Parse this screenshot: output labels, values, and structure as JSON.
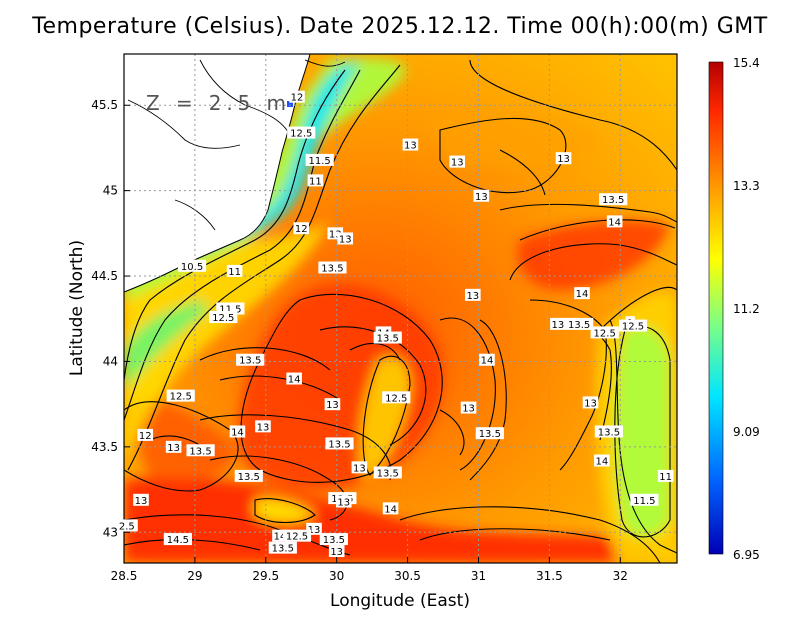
{
  "title": "Temperature (Celsius). Date 2025.12.12. Time 00(h):00(m) GMT",
  "depth_label": "Z = 2.5 m",
  "map": {
    "xlabel": "Longitude (East)",
    "ylabel": "Latitude (North)",
    "xlim": [
      28.5,
      32.4
    ],
    "ylim": [
      42.82,
      45.8
    ],
    "x_ticks": [
      {
        "v": 28.5,
        "t": "28.5"
      },
      {
        "v": 29,
        "t": "29"
      },
      {
        "v": 29.5,
        "t": "29.5"
      },
      {
        "v": 30,
        "t": "30"
      },
      {
        "v": 30.5,
        "t": "30.5"
      },
      {
        "v": 31,
        "t": "31"
      },
      {
        "v": 31.5,
        "t": "31.5"
      },
      {
        "v": 32,
        "t": "32"
      }
    ],
    "y_ticks": [
      {
        "v": 43,
        "t": "43"
      },
      {
        "v": 43.5,
        "t": "43.5"
      },
      {
        "v": 44,
        "t": "44"
      },
      {
        "v": 44.5,
        "t": "44.5"
      },
      {
        "v": 45,
        "t": "45"
      },
      {
        "v": 45.5,
        "t": "45.5"
      }
    ],
    "grid": "dotted",
    "contour_interval": 0.5
  },
  "colorbar": {
    "min": 6.95,
    "max": 15.4,
    "labels": [
      "15.4",
      "13.3",
      "11.2",
      "9.09",
      "6.95"
    ],
    "colors": [
      "#0000b4",
      "#0064ff",
      "#00e6ff",
      "#80ff80",
      "#ffff00",
      "#ff9600",
      "#ff2800",
      "#b40000"
    ]
  },
  "contour_labels": [
    {
      "lon": 29.72,
      "lat": 45.55,
      "t": "12"
    },
    {
      "lon": 29.75,
      "lat": 45.34,
      "t": "12.5"
    },
    {
      "lon": 29.88,
      "lat": 45.18,
      "t": "11.5"
    },
    {
      "lon": 29.85,
      "lat": 45.06,
      "t": "11"
    },
    {
      "lon": 30.52,
      "lat": 45.27,
      "t": "13"
    },
    {
      "lon": 30.85,
      "lat": 45.17,
      "t": "13"
    },
    {
      "lon": 31.6,
      "lat": 45.19,
      "t": "13"
    },
    {
      "lon": 31.02,
      "lat": 44.97,
      "t": "13"
    },
    {
      "lon": 31.95,
      "lat": 44.95,
      "t": "13.5"
    },
    {
      "lon": 31.96,
      "lat": 44.82,
      "t": "14"
    },
    {
      "lon": 29.75,
      "lat": 44.78,
      "t": "12"
    },
    {
      "lon": 29.99,
      "lat": 44.75,
      "t": "13"
    },
    {
      "lon": 30.06,
      "lat": 44.72,
      "t": "13"
    },
    {
      "lon": 28.98,
      "lat": 44.56,
      "t": "10.5"
    },
    {
      "lon": 29.28,
      "lat": 44.53,
      "t": "11"
    },
    {
      "lon": 29.97,
      "lat": 44.55,
      "t": "13.5"
    },
    {
      "lon": 30.96,
      "lat": 44.39,
      "t": "13"
    },
    {
      "lon": 31.73,
      "lat": 44.4,
      "t": "14"
    },
    {
      "lon": 29.25,
      "lat": 44.31,
      "t": "11.5"
    },
    {
      "lon": 29.2,
      "lat": 44.26,
      "t": "12.5"
    },
    {
      "lon": 31.56,
      "lat": 44.22,
      "t": "13"
    },
    {
      "lon": 31.71,
      "lat": 44.22,
      "t": "13.5"
    },
    {
      "lon": 32.07,
      "lat": 44.23,
      "t": "1"
    },
    {
      "lon": 32.09,
      "lat": 44.21,
      "t": "12.5"
    },
    {
      "lon": 31.89,
      "lat": 44.17,
      "t": "12.5"
    },
    {
      "lon": 30.33,
      "lat": 44.17,
      "t": "14"
    },
    {
      "lon": 30.36,
      "lat": 44.14,
      "t": "13.5"
    },
    {
      "lon": 29.39,
      "lat": 44.01,
      "t": "13.5"
    },
    {
      "lon": 31.06,
      "lat": 44.01,
      "t": "14"
    },
    {
      "lon": 29.7,
      "lat": 43.9,
      "t": "14"
    },
    {
      "lon": 28.9,
      "lat": 43.8,
      "t": "12.5"
    },
    {
      "lon": 30.42,
      "lat": 43.79,
      "t": "12.5"
    },
    {
      "lon": 29.97,
      "lat": 43.75,
      "t": "13"
    },
    {
      "lon": 30.93,
      "lat": 43.73,
      "t": "13"
    },
    {
      "lon": 31.79,
      "lat": 43.76,
      "t": "13"
    },
    {
      "lon": 29.48,
      "lat": 43.62,
      "t": "13"
    },
    {
      "lon": 29.3,
      "lat": 43.59,
      "t": "14"
    },
    {
      "lon": 31.08,
      "lat": 43.58,
      "t": "13.5"
    },
    {
      "lon": 31.92,
      "lat": 43.59,
      "t": "13.5"
    },
    {
      "lon": 28.65,
      "lat": 43.57,
      "t": "12"
    },
    {
      "lon": 28.85,
      "lat": 43.5,
      "t": "13"
    },
    {
      "lon": 29.04,
      "lat": 43.48,
      "t": "13.5"
    },
    {
      "lon": 30.02,
      "lat": 43.52,
      "t": "13.5"
    },
    {
      "lon": 31.87,
      "lat": 43.42,
      "t": "14"
    },
    {
      "lon": 30.16,
      "lat": 43.38,
      "t": "13"
    },
    {
      "lon": 30.36,
      "lat": 43.35,
      "t": "13.5"
    },
    {
      "lon": 32.32,
      "lat": 43.33,
      "t": "11"
    },
    {
      "lon": 29.38,
      "lat": 43.33,
      "t": "13.5"
    },
    {
      "lon": 28.62,
      "lat": 43.19,
      "t": "13"
    },
    {
      "lon": 30.04,
      "lat": 43.2,
      "t": "12.5"
    },
    {
      "lon": 30.05,
      "lat": 43.18,
      "t": "13"
    },
    {
      "lon": 32.17,
      "lat": 43.19,
      "t": "11.5"
    },
    {
      "lon": 30.38,
      "lat": 43.14,
      "t": "14"
    },
    {
      "lon": 28.52,
      "lat": 43.04,
      "t": "2.5"
    },
    {
      "lon": 29.84,
      "lat": 43.02,
      "t": "13"
    },
    {
      "lon": 29.6,
      "lat": 42.98,
      "t": "14"
    },
    {
      "lon": 29.72,
      "lat": 42.98,
      "t": "12.5"
    },
    {
      "lon": 28.88,
      "lat": 42.96,
      "t": "14.5"
    },
    {
      "lon": 29.98,
      "lat": 42.96,
      "t": "13.5"
    },
    {
      "lon": 29.62,
      "lat": 42.91,
      "t": "13.5"
    },
    {
      "lon": 30.0,
      "lat": 42.89,
      "t": "13"
    }
  ]
}
